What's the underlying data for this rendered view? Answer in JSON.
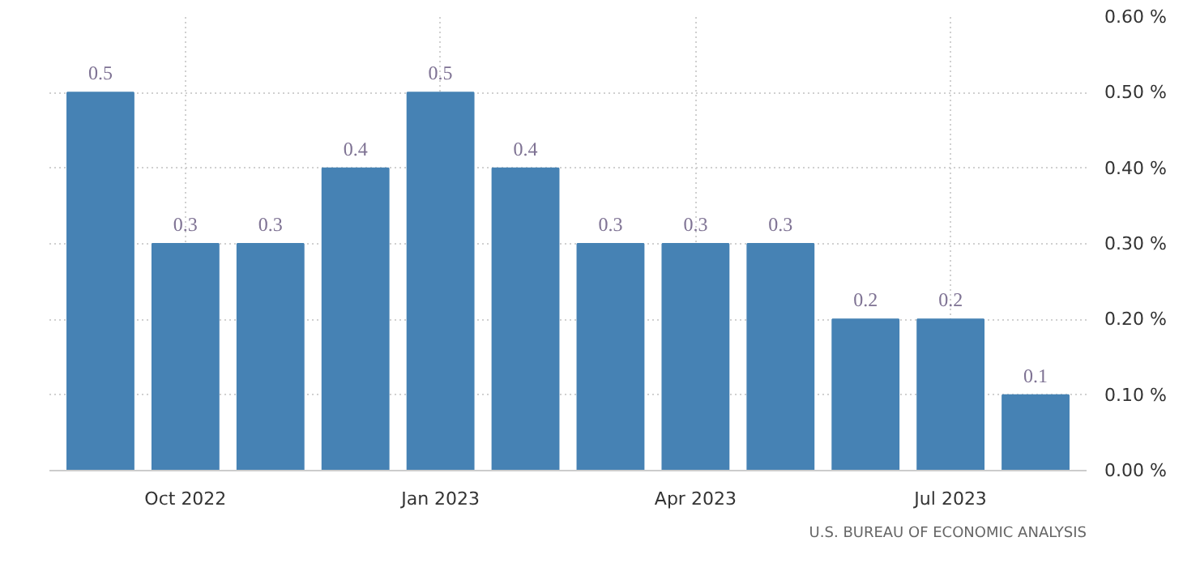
{
  "chart_data": {
    "type": "bar",
    "categories": [
      null,
      "Oct 2022",
      null,
      null,
      "Jan 2023",
      null,
      null,
      "Apr 2023",
      null,
      null,
      "Jul 2023",
      null
    ],
    "values": [
      0.5,
      0.3,
      0.3,
      0.4,
      0.5,
      0.4,
      0.3,
      0.3,
      0.3,
      0.2,
      0.2,
      0.1
    ],
    "color": "#4682b4",
    "value_labels": [
      "0.5",
      "0.3",
      "0.3",
      "0.4",
      "0.5",
      "0.4",
      "0.3",
      "0.3",
      "0.3",
      "0.2",
      "0.2",
      "0.1"
    ],
    "ylim": [
      0,
      0.6
    ],
    "yticks": [
      {
        "value": 0,
        "label": "0.00 %"
      },
      {
        "value": 0.1,
        "label": "0.10 %"
      },
      {
        "value": 0.2,
        "label": "0.20 %"
      },
      {
        "value": 0.3,
        "label": "0.30 %"
      },
      {
        "value": 0.4,
        "label": "0.40 %"
      },
      {
        "value": 0.5,
        "label": "0.50 %"
      },
      {
        "value": 0.6,
        "label": "0.60 %"
      }
    ],
    "grid": true,
    "annotations": [
      "U.S. BUREAU OF ECONOMIC ANALYSIS"
    ]
  }
}
